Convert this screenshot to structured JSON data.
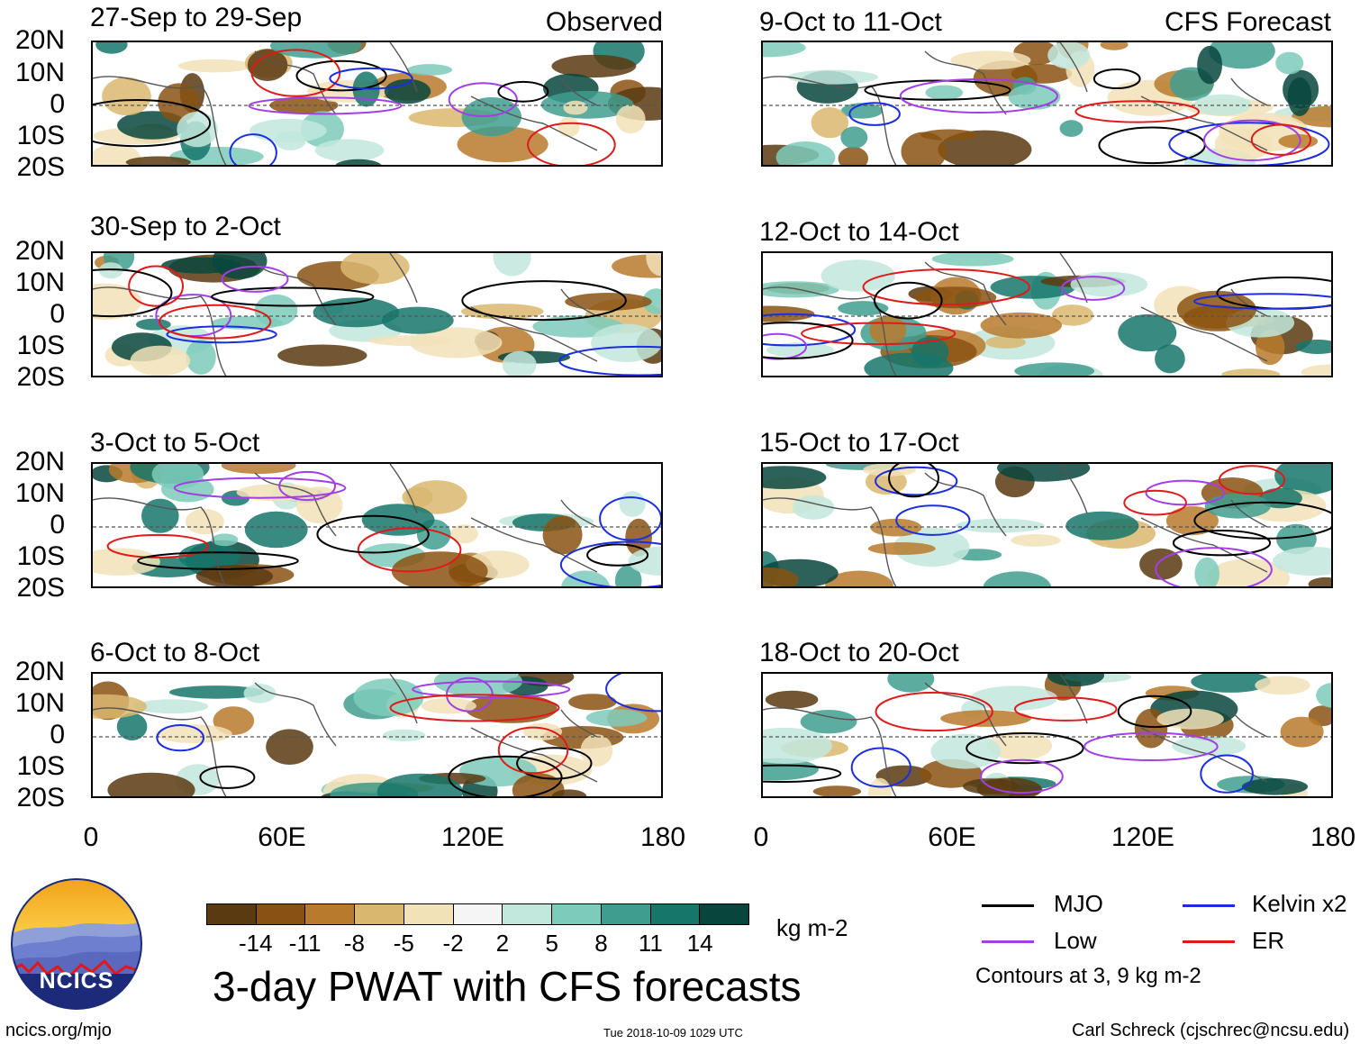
{
  "panels": [
    {
      "title": "27-Sep to 29-Sep",
      "tag": "Observed"
    },
    {
      "title": "9-Oct to 11-Oct",
      "tag": "CFS Forecast"
    },
    {
      "title": "30-Sep to 2-Oct",
      "tag": ""
    },
    {
      "title": "12-Oct to 14-Oct",
      "tag": ""
    },
    {
      "title": "3-Oct to 5-Oct",
      "tag": ""
    },
    {
      "title": "15-Oct to 17-Oct",
      "tag": ""
    },
    {
      "title": "6-Oct to 8-Oct",
      "tag": ""
    },
    {
      "title": "18-Oct to 20-Oct",
      "tag": ""
    }
  ],
  "y_axis_labels": [
    "20N",
    "10N",
    "0",
    "10S",
    "20S"
  ],
  "x_axis_labels": [
    "0",
    "60E",
    "120E",
    "180"
  ],
  "colorbar": {
    "colors": [
      "#5a3a10",
      "#8a5212",
      "#b87a2c",
      "#d9b76e",
      "#f2e2b8",
      "#f5f5f5",
      "#c2e8dd",
      "#7ccbbb",
      "#3f9d8f",
      "#16766a",
      "#08463d"
    ],
    "ticks": [
      "-14",
      "-11",
      "-8",
      "-5",
      "-2",
      "2",
      "5",
      "8",
      "11",
      "14"
    ],
    "units": "kg m-2"
  },
  "title": "3-day PWAT with CFS forecasts",
  "legend": [
    {
      "label": "MJO",
      "color": "#000000"
    },
    {
      "label": "Kelvin x2",
      "color": "#1a2ee0"
    },
    {
      "label": "Low",
      "color": "#a23ee6"
    },
    {
      "label": "ER",
      "color": "#e01a1a"
    }
  ],
  "contour_note": "Contours at 3, 9 kg m-2",
  "logo_text": "NCICS",
  "footer": {
    "left": "ncics.org/mjo",
    "center": "Tue 2018-10-09 1029 UTC",
    "right": "Carl Schreck (cjschrec@ncsu.edu)"
  }
}
